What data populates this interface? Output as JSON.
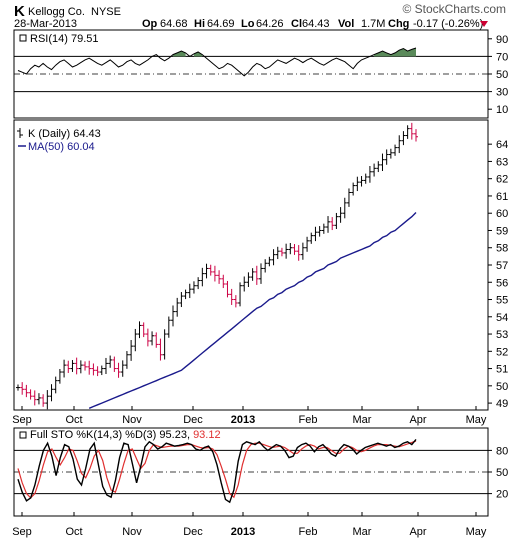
{
  "header": {
    "ticker": "K",
    "company": "Kellogg Co.",
    "exchange": "NYSE",
    "date": "28-Mar-2013",
    "brand": "© StockCharts.com",
    "ohlc": {
      "op_label": "Op",
      "op": "64.68",
      "hi_label": "Hi",
      "hi": "64.69",
      "lo_label": "Lo",
      "lo": "64.26",
      "cl_label": "Cl",
      "cl": "64.43",
      "vol_label": "Vol",
      "vol": "1.7M",
      "chg_label": "Chg",
      "chg": "-0.17 (-0.26%)"
    }
  },
  "colors": {
    "price_up": "#000000",
    "price_down": "#cc0044",
    "ma": "#1a1a8c",
    "rsi_fill": "#5a8a5a",
    "sto_k": "#000000",
    "sto_d": "#e03030",
    "down_arrow": "#cc0033"
  },
  "months": [
    "Sep",
    "Oct",
    "Nov",
    "Dec",
    "2013",
    "Feb",
    "Mar",
    "Apr",
    "May"
  ],
  "chart_data": [
    {
      "type": "line",
      "panel": "rsi",
      "legend": "RSI(14) 79.51",
      "last_value": 79.51,
      "overbought": 70,
      "oversold": 30,
      "ylim": [
        0,
        100
      ],
      "y_ticks": [
        90,
        70,
        50,
        30,
        10
      ],
      "series": [
        {
          "name": "RSI(14)",
          "values": [
            54,
            52,
            50,
            56,
            60,
            58,
            62,
            58,
            55,
            60,
            64,
            66,
            62,
            58,
            60,
            63,
            66,
            68,
            65,
            62,
            60,
            63,
            66,
            62,
            58,
            60,
            64,
            66,
            62,
            60,
            63,
            66,
            70,
            72,
            68,
            65,
            68,
            72,
            74,
            76,
            74,
            70,
            73,
            75,
            72,
            68,
            64,
            60,
            56,
            58,
            62,
            60,
            56,
            52,
            48,
            52,
            58,
            62,
            60,
            56,
            58,
            62,
            66,
            64,
            62,
            65,
            68,
            66,
            63,
            66,
            68,
            65,
            62,
            60,
            63,
            66,
            68,
            66,
            64,
            60,
            56,
            62,
            66,
            68,
            70,
            72,
            74,
            76,
            74,
            72,
            74,
            77,
            79,
            76,
            78,
            79.5
          ]
        }
      ]
    },
    {
      "type": "line",
      "panel": "price",
      "legend": "K (Daily) 64.43",
      "ma_legend": "MA(50) 60.04",
      "last_close": 64.43,
      "ma_last": 60.04,
      "ylim": [
        48.6,
        65.4
      ],
      "y_ticks": [
        64,
        63,
        62,
        61,
        60,
        59,
        58,
        57,
        56,
        55,
        54,
        53,
        52,
        51,
        50,
        49
      ],
      "x_ticks": [
        "Sep",
        "Oct",
        "Nov",
        "Dec",
        "2013",
        "Feb",
        "Mar",
        "Apr",
        "May"
      ],
      "series": [
        {
          "name": "K (Daily)",
          "values": [
            49.9,
            49.8,
            49.6,
            49.4,
            49.2,
            49.3,
            49.0,
            49.4,
            49.8,
            50.3,
            50.8,
            51.2,
            51.0,
            51.3,
            51.0,
            51.2,
            51.1,
            51.0,
            50.9,
            50.8,
            51.0,
            51.3,
            51.5,
            51.0,
            50.8,
            51.2,
            51.8,
            52.3,
            53.0,
            53.5,
            53.0,
            52.6,
            52.9,
            52.4,
            51.8,
            53.0,
            53.8,
            54.3,
            54.8,
            55.2,
            55.4,
            55.6,
            55.8,
            56.1,
            56.5,
            56.8,
            56.6,
            56.4,
            56.2,
            55.9,
            55.3,
            55.0,
            54.8,
            55.8,
            56.0,
            56.3,
            56.6,
            56.2,
            56.8,
            57.1,
            57.3,
            57.6,
            57.8,
            57.7,
            57.9,
            58.0,
            57.8,
            57.6,
            58.0,
            58.4,
            58.7,
            58.9,
            59.0,
            59.2,
            59.5,
            59.3,
            59.8,
            60.0,
            60.6,
            61.2,
            61.6,
            61.8,
            61.9,
            62.1,
            62.4,
            62.6,
            62.8,
            63.1,
            63.4,
            63.5,
            63.8,
            64.2,
            64.5,
            64.9,
            64.6,
            64.43
          ]
        },
        {
          "name": "MA(50)",
          "values": [
            48.7,
            48.8,
            48.9,
            49.0,
            49.1,
            49.2,
            49.3,
            49.4,
            49.5,
            49.6,
            49.7,
            49.8,
            49.9,
            50.0,
            50.1,
            50.2,
            50.3,
            50.4,
            50.5,
            50.6,
            50.7,
            50.8,
            50.9,
            51.1,
            51.3,
            51.5,
            51.7,
            51.9,
            52.1,
            52.3,
            52.5,
            52.7,
            52.9,
            53.1,
            53.3,
            53.5,
            53.7,
            53.9,
            54.1,
            54.3,
            54.5,
            54.6,
            54.8,
            55.0,
            55.1,
            55.3,
            55.4,
            55.6,
            55.7,
            55.8,
            56.0,
            56.1,
            56.3,
            56.4,
            56.6,
            56.7,
            56.8,
            57.0,
            57.1,
            57.2,
            57.4,
            57.5,
            57.6,
            57.7,
            57.8,
            57.9,
            58.0,
            58.1,
            58.3,
            58.4,
            58.6,
            58.7,
            58.9,
            59.0,
            59.2,
            59.4,
            59.6,
            59.8,
            60.04
          ]
        }
      ]
    },
    {
      "type": "line",
      "panel": "stochastic",
      "legend_k": "Full STO %K(14,3)",
      "legend_d": "%D(3)",
      "k_last": 95.23,
      "d_last": 93.12,
      "k_value": "95.23",
      "d_value": "93.12",
      "ylim": [
        0,
        100
      ],
      "y_ticks": [
        80,
        50,
        20
      ],
      "x_ticks": [
        "Sep",
        "Oct",
        "Nov",
        "Dec",
        "2013",
        "Feb",
        "Mar",
        "Apr",
        "May"
      ],
      "series": [
        {
          "name": "%K",
          "values": [
            40,
            22,
            10,
            14,
            32,
            58,
            80,
            90,
            72,
            45,
            70,
            88,
            85,
            68,
            40,
            32,
            55,
            82,
            90,
            60,
            30,
            18,
            15,
            38,
            70,
            90,
            88,
            62,
            35,
            58,
            85,
            92,
            88,
            82,
            85,
            90,
            88,
            86,
            87,
            88,
            90,
            88,
            82,
            80,
            84,
            86,
            78,
            60,
            35,
            12,
            8,
            25,
            65,
            88,
            92,
            90,
            88,
            92,
            85,
            80,
            84,
            88,
            86,
            80,
            70,
            72,
            84,
            88,
            90,
            86,
            78,
            85,
            88,
            82,
            75,
            72,
            82,
            88,
            86,
            82,
            75,
            80,
            84,
            86,
            88,
            90,
            88,
            86,
            88,
            84,
            86,
            90,
            92,
            88,
            95.23
          ]
        },
        {
          "name": "%D",
          "values": [
            55,
            35,
            20,
            14,
            20,
            38,
            60,
            78,
            82,
            70,
            60,
            70,
            82,
            80,
            65,
            48,
            42,
            55,
            72,
            80,
            66,
            42,
            25,
            22,
            40,
            62,
            80,
            82,
            68,
            55,
            62,
            80,
            88,
            86,
            84,
            85,
            86,
            86,
            86,
            87,
            88,
            88,
            86,
            84,
            83,
            84,
            82,
            74,
            58,
            40,
            20,
            15,
            32,
            60,
            80,
            88,
            90,
            90,
            88,
            86,
            84,
            85,
            86,
            84,
            80,
            76,
            76,
            82,
            86,
            88,
            86,
            82,
            84,
            84,
            80,
            76,
            76,
            82,
            86,
            84,
            80,
            78,
            80,
            83,
            86,
            88,
            88,
            88,
            87,
            86,
            85,
            87,
            89,
            91,
            93.12
          ]
        }
      ]
    }
  ]
}
